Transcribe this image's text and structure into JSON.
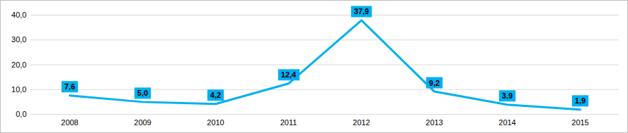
{
  "chart_data": {
    "type": "line",
    "categories": [
      "2008",
      "2009",
      "2010",
      "2011",
      "2012",
      "2013",
      "2014",
      "2015"
    ],
    "values": [
      7.6,
      5.0,
      4.2,
      12.4,
      37.9,
      9.2,
      3.9,
      1.9
    ],
    "value_labels": [
      "7,6",
      "5,0",
      "4,2",
      "12,4",
      "37,9",
      "9,2",
      "3,9",
      "1,9"
    ],
    "color": "#00b0f0",
    "ylim": [
      0,
      40
    ],
    "yticks": [
      {
        "value": 0,
        "label": "0,0"
      },
      {
        "value": 10,
        "label": "10,0"
      },
      {
        "value": 20,
        "label": "20,0"
      },
      {
        "value": 30,
        "label": "30,0"
      },
      {
        "value": 40,
        "label": "40,0"
      }
    ],
    "grid": true,
    "data_labels": true,
    "marker": "none",
    "line_style": "solid"
  }
}
